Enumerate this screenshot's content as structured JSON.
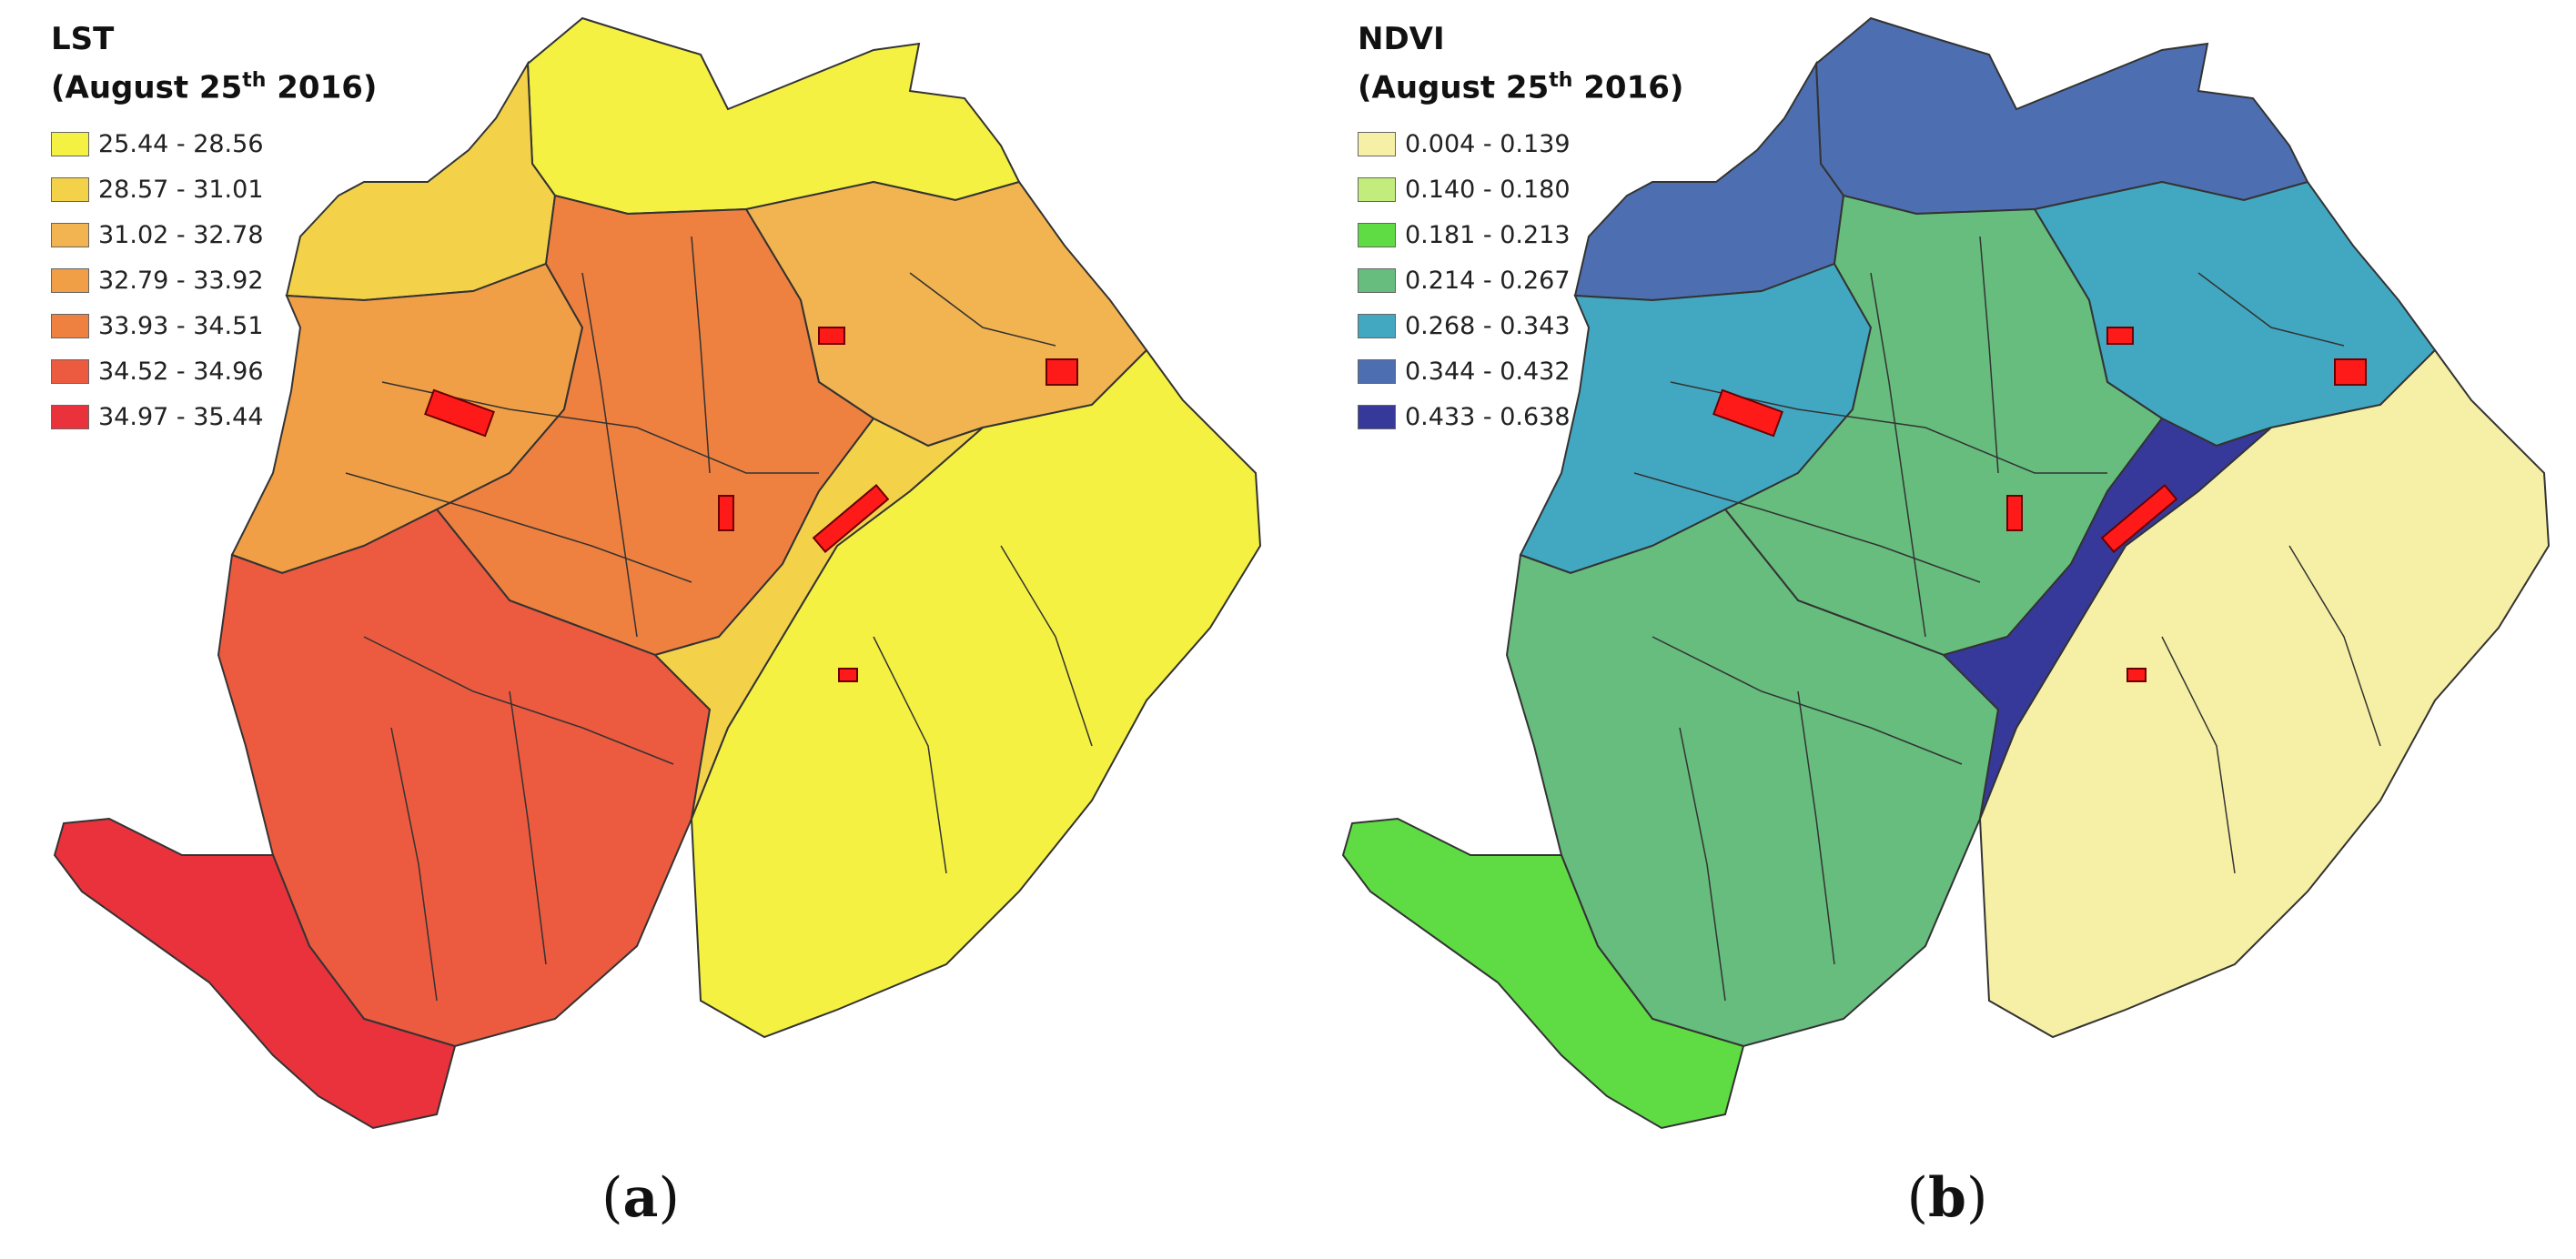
{
  "maps": [
    {
      "id": "lst",
      "title_main": "LST",
      "title_sub_prefix": "(August 25",
      "title_sub_sup": "th",
      "title_sub_suffix": " 2016)",
      "legend": [
        {
          "label": "25.44 - 28.56",
          "color": "#f4f142"
        },
        {
          "label": "28.57 - 31.01",
          "color": "#f3d24a"
        },
        {
          "label": "31.02 - 32.78",
          "color": "#f2b450"
        },
        {
          "label": "32.79 - 33.92",
          "color": "#f09f47"
        },
        {
          "label": "33.93 - 34.51",
          "color": "#ee8040"
        },
        {
          "label": "34.52 - 34.96",
          "color": "#ec5a3f"
        },
        {
          "label": "34.97 - 35.44",
          "color": "#e9323c"
        }
      ],
      "regions": [
        0,
        1,
        2,
        3,
        4,
        5,
        6,
        0,
        1
      ],
      "caption_letter": "a"
    },
    {
      "id": "ndvi",
      "title_main": "NDVI",
      "title_sub_prefix": "(August 25",
      "title_sub_sup": "th",
      "title_sub_suffix": " 2016)",
      "legend": [
        {
          "label": "0.004 - 0.139",
          "color": "#f6f0a6"
        },
        {
          "label": "0.140 - 0.180",
          "color": "#c2ec7c"
        },
        {
          "label": "0.181 - 0.213",
          "color": "#5fdc44"
        },
        {
          "label": "0.214 - 0.267",
          "color": "#66bd7d"
        },
        {
          "label": "0.268 - 0.343",
          "color": "#42a8c2"
        },
        {
          "label": "0.344 - 0.432",
          "color": "#4d6fb1"
        },
        {
          "label": "0.433 - 0.638",
          "color": "#37399a"
        }
      ],
      "regions": [
        5,
        5,
        4,
        4,
        3,
        3,
        2,
        0,
        6
      ],
      "caption_letter": "b"
    }
  ]
}
